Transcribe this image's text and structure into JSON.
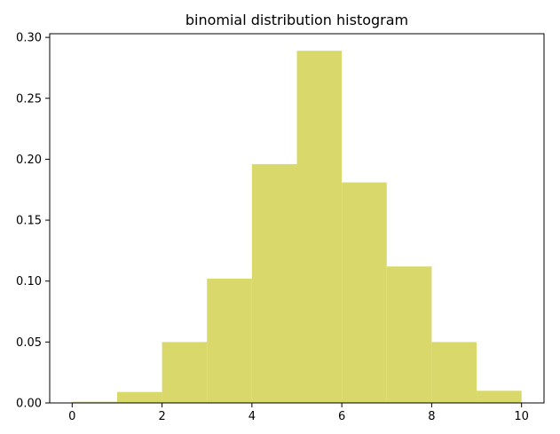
{
  "chart_data": {
    "type": "bar",
    "title": "binomial distribution histogram",
    "xlabel": "",
    "ylabel": "",
    "bins": [
      {
        "x0": 0,
        "x1": 1,
        "value": 0.001
      },
      {
        "x0": 1,
        "x1": 2,
        "value": 0.009
      },
      {
        "x0": 2,
        "x1": 3,
        "value": 0.05
      },
      {
        "x0": 3,
        "x1": 4,
        "value": 0.102
      },
      {
        "x0": 4,
        "x1": 5,
        "value": 0.196
      },
      {
        "x0": 5,
        "x1": 6,
        "value": 0.289
      },
      {
        "x0": 6,
        "x1": 7,
        "value": 0.181
      },
      {
        "x0": 7,
        "x1": 8,
        "value": 0.112
      },
      {
        "x0": 8,
        "x1": 9,
        "value": 0.05
      },
      {
        "x0": 9,
        "x1": 10,
        "value": 0.01
      }
    ],
    "xlim": [
      -0.5,
      10.5
    ],
    "ylim": [
      0,
      0.303
    ],
    "xticks": [
      0,
      2,
      4,
      6,
      8,
      10
    ],
    "xtick_labels": [
      "0",
      "2",
      "4",
      "6",
      "8",
      "10"
    ],
    "yticks": [
      0.0,
      0.05,
      0.1,
      0.15,
      0.2,
      0.25,
      0.3
    ],
    "ytick_labels": [
      "0.00",
      "0.05",
      "0.10",
      "0.15",
      "0.20",
      "0.25",
      "0.30"
    ],
    "grid": false,
    "bar_color": "#d9d86b"
  }
}
